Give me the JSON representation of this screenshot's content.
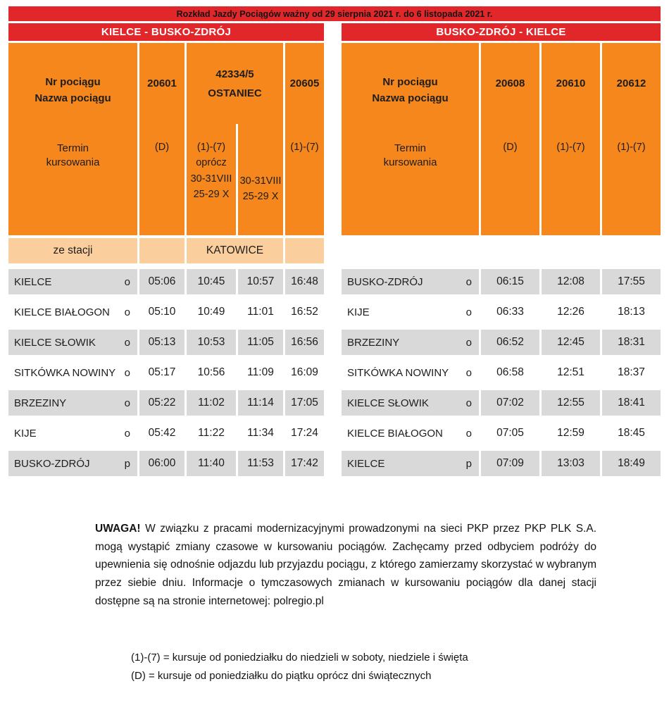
{
  "colors": {
    "red": "#e2272b",
    "orange": "#f6871d",
    "peach": "#fbce9e",
    "gray": "#d9d9d9"
  },
  "banner": {
    "validity": "Rozkład Jazdy Pociągów ważny od 29 sierpnia 2021 r. do 6 listopada 2021 r."
  },
  "outbound": {
    "direction": "KIELCE - BUSKO-ZDRÓJ",
    "train_label": "Nr pociągu\nNazwa pociągu",
    "term_label": "Termin\nkursowania",
    "trains": {
      "t1_number": "20601",
      "t1_term": "(D)",
      "t2_number": "42334/5\nOSTANIEC",
      "t2a_term": "(1)-(7)\noprócz\n30-31VIII\n25-29 X",
      "t2b_term": "30-31VIII\n25-29 X",
      "t3_number": "20605",
      "t3_term": "(1)-(7)"
    },
    "origin_row": {
      "label": "ze stacji",
      "origin": "KATOWICE"
    },
    "rows": [
      {
        "station": "KIELCE",
        "marker": "o",
        "t1": "05:06",
        "t2": "10:45",
        "t3": "10:57",
        "t4": "16:48"
      },
      {
        "station": "KIELCE BIAŁOGON",
        "marker": "o",
        "t1": "05:10",
        "t2": "10:49",
        "t3": "11:01",
        "t4": "16:52"
      },
      {
        "station": "KIELCE SŁOWIK",
        "marker": "o",
        "t1": "05:13",
        "t2": "10:53",
        "t3": "11:05",
        "t4": "16:56"
      },
      {
        "station": "SITKÓWKA NOWINY",
        "marker": "o",
        "t1": "05:17",
        "t2": "10:56",
        "t3": "11:09",
        "t4": "16:09"
      },
      {
        "station": "BRZEZINY",
        "marker": "o",
        "t1": "05:22",
        "t2": "11:02",
        "t3": "11:14",
        "t4": "17:05"
      },
      {
        "station": "KIJE",
        "marker": "o",
        "t1": "05:42",
        "t2": "11:22",
        "t3": "11:34",
        "t4": "17:24"
      },
      {
        "station": "BUSKO-ZDRÓJ",
        "marker": "p",
        "t1": "06:00",
        "t2": "11:40",
        "t3": "11:53",
        "t4": "17:42"
      }
    ]
  },
  "return": {
    "direction": "BUSKO-ZDRÓJ - KIELCE",
    "train_label": "Nr pociągu\nNazwa pociągu",
    "term_label": "Termin\nkursowania",
    "trains": {
      "t1_number": "20608",
      "t1_term": "(D)",
      "t2_number": "20610",
      "t2_term": "(1)-(7)",
      "t3_number": "20612",
      "t3_term": "(1)-(7)"
    },
    "rows": [
      {
        "station": "BUSKO-ZDRÓJ",
        "marker": "o",
        "t1": "06:15",
        "t2": "12:08",
        "t3": "17:55"
      },
      {
        "station": "KIJE",
        "marker": "o",
        "t1": "06:33",
        "t2": "12:26",
        "t3": "18:13"
      },
      {
        "station": "BRZEZINY",
        "marker": "o",
        "t1": "06:52",
        "t2": "12:45",
        "t3": "18:31"
      },
      {
        "station": "SITKÓWKA NOWINY",
        "marker": "o",
        "t1": "06:58",
        "t2": "12:51",
        "t3": "18:37"
      },
      {
        "station": "KIELCE SŁOWIK",
        "marker": "o",
        "t1": "07:02",
        "t2": "12:55",
        "t3": "18:41"
      },
      {
        "station": "KIELCE BIAŁOGON",
        "marker": "o",
        "t1": "07:05",
        "t2": "12:59",
        "t3": "18:45"
      },
      {
        "station": "KIELCE",
        "marker": "p",
        "t1": "07:09",
        "t2": "13:03",
        "t3": "18:49"
      }
    ]
  },
  "footer": {
    "warning_bold": "UWAGA!",
    "warning_text": " W związku z pracami modernizacyjnymi prowadzonymi na sieci PKP przez PKP PLK S.A. mogą wystąpić zmiany czasowe w kursowaniu pociągów. Zachęcamy przed odbyciem podróży do upewnienia się odnośnie odjazdu lub przyjazdu pociągu, z którego zamierzamy skorzystać w wybranym przez siebie dniu. Informacje o tymczasowych zmianach w kursowaniu pociągów dla danej stacji dostępne są na stronie internetowej: polregio.pl",
    "legend": [
      "(1)-(7) = kursuje od poniedziałku do niedzieli w soboty, niedziele i święta",
      "(D) = kursuje od poniedziałku do piątku oprócz dni świątecznych"
    ]
  }
}
